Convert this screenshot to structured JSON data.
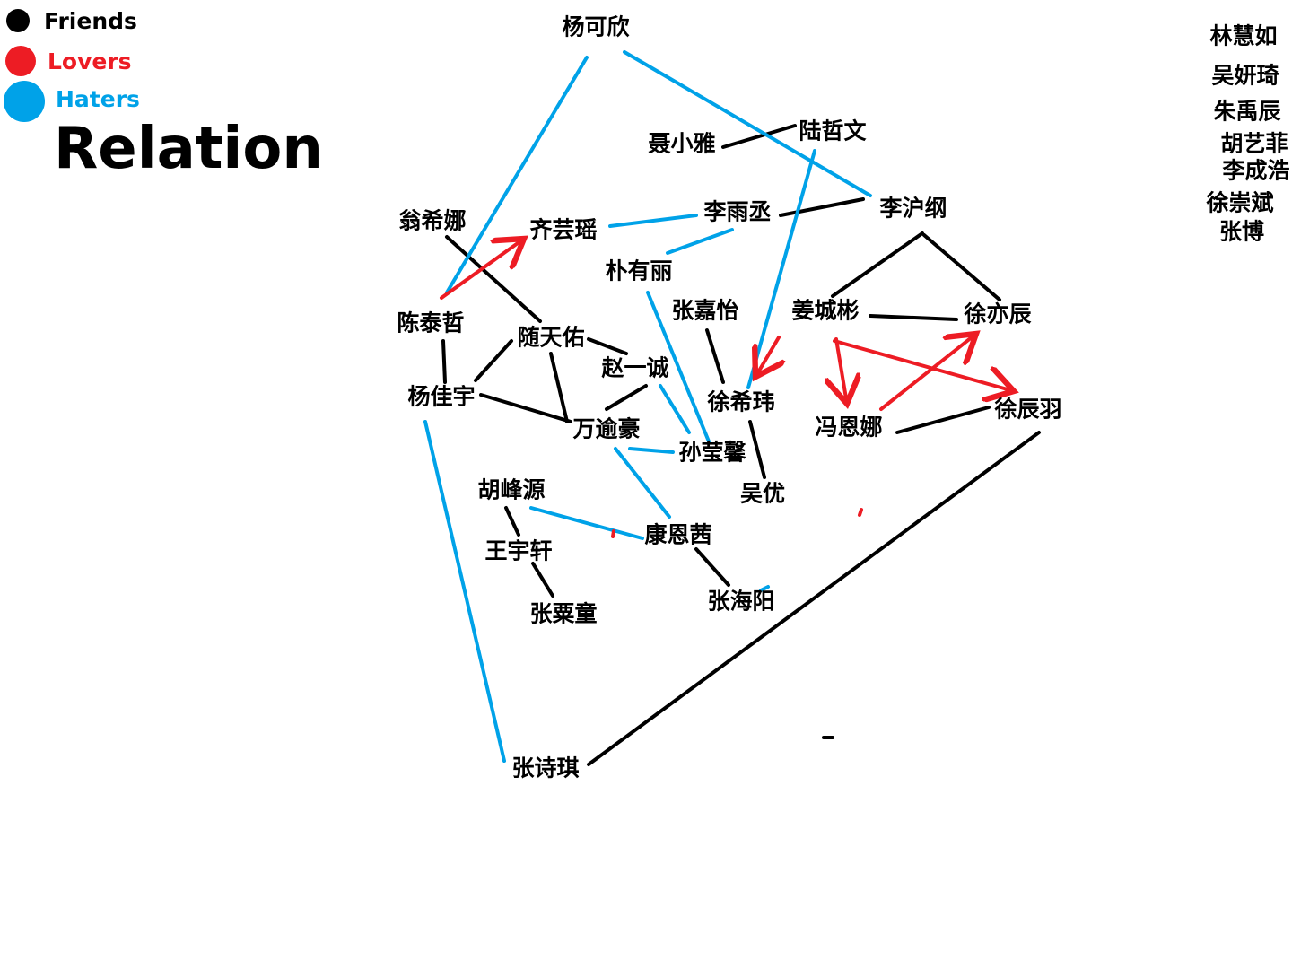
{
  "title": "Relation",
  "legend": [
    {
      "label": "Friends",
      "color": "#000000"
    },
    {
      "label": "Lovers",
      "color": "#ed1c24"
    },
    {
      "label": "Haters",
      "color": "#00a2e8"
    }
  ],
  "people": {
    "yang_kexin": "杨可欣",
    "nie_xiaoya": "聂小雅",
    "lu_zhewen": "陆哲文",
    "li_yucheng": "李雨丞",
    "li_hugang": "李沪纲",
    "weng_xina": "翁希娜",
    "qi_yunyao": "齐芸瑶",
    "piao_youli": "朴有丽",
    "chen_taizhe": "陈泰哲",
    "sui_tianyou": "随天佑",
    "zhang_jiayi": "张嘉怡",
    "jiang_chengbin": "姜城彬",
    "xu_yichen": "徐亦辰",
    "zhao_yicheng": "赵一诚",
    "yang_jiayu": "杨佳宇",
    "xu_xiwei": "徐希玮",
    "feng_enna": "冯恩娜",
    "xu_chenyu": "徐辰羽",
    "wan_yuhao": "万逾豪",
    "sun_yingxin": "孙莹馨",
    "hu_fengyuan": "胡峰源",
    "wu_you": "吴优",
    "wang_yuxuan": "王宇轩",
    "kang_enqian": "康恩茜",
    "zhang_sutong": "张粟童",
    "zhang_haiyang": "张海阳",
    "zhang_shiqi": "张诗琪",
    "lin_huiru": "林慧如",
    "wu_yanqi": "吴妍琦",
    "zhu_yuchen": "朱禹辰",
    "hu_yifei": "胡艺菲",
    "li_chenghao": "李成浩",
    "xu_chongbin": "徐崇斌",
    "zhang_bo": "张博"
  }
}
